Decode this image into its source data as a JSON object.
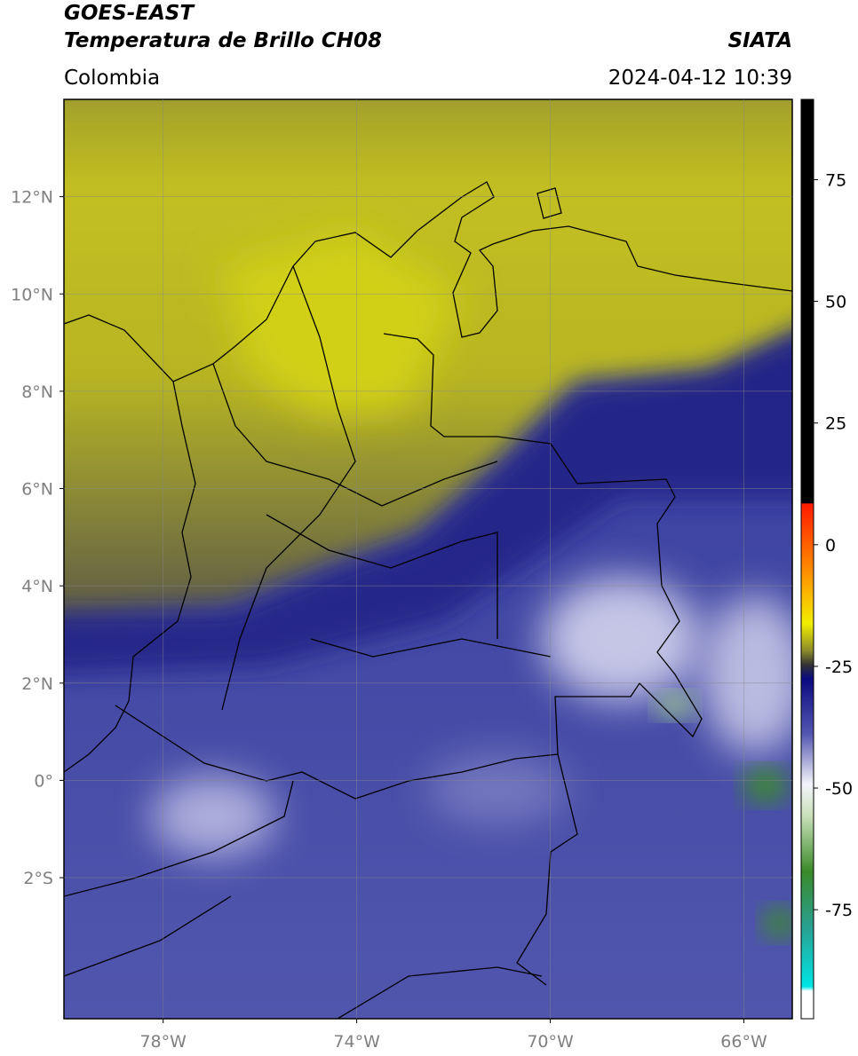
{
  "header": {
    "title": "GOES-EAST",
    "subtitle": "Temperatura de Brillo CH08",
    "region": "Colombia",
    "source": "SIATA",
    "datetime": "2024-04-12 10:39"
  },
  "map": {
    "xlim": [
      -80.05,
      -65.0
    ],
    "ylim": [
      -4.9,
      14.0
    ],
    "xticks": [
      {
        "value": -78,
        "label": "78°W"
      },
      {
        "value": -74,
        "label": "74°W"
      },
      {
        "value": -70,
        "label": "70°W"
      },
      {
        "value": -66,
        "label": "66°W"
      }
    ],
    "yticks": [
      {
        "value": 12,
        "label": "12°N"
      },
      {
        "value": 10,
        "label": "10°N"
      },
      {
        "value": 8,
        "label": "8°N"
      },
      {
        "value": 6,
        "label": "6°N"
      },
      {
        "value": 4,
        "label": "4°N"
      },
      {
        "value": 2,
        "label": "2°N"
      },
      {
        "value": 0,
        "label": "0°"
      },
      {
        "value": -2,
        "label": "2°S"
      }
    ],
    "grid": true
  },
  "colorbar": {
    "clim": [
      -97.4,
      91.5
    ],
    "ticks": [
      75,
      50,
      25,
      0,
      -25,
      -50,
      -75
    ]
  }
}
